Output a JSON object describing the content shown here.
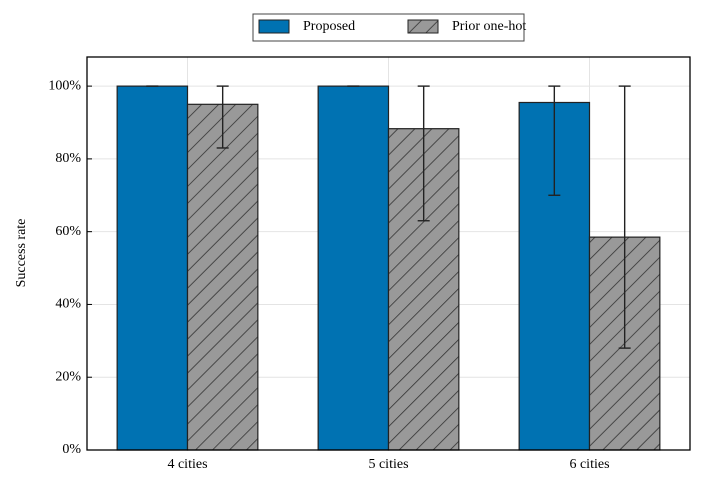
{
  "chart_data": {
    "type": "bar",
    "y_label": "Success rate",
    "categories": [
      "4 cities",
      "5 cities",
      "6 cities"
    ],
    "series": [
      {
        "name": "Proposed",
        "color": "#0072b2",
        "hatch": false,
        "values": [
          100,
          100,
          95.5
        ],
        "error_minus": [
          0,
          0,
          25.5
        ],
        "error_plus": [
          0,
          0,
          4.5
        ]
      },
      {
        "name": "Prior one-hot",
        "color": "#999999",
        "hatch": true,
        "values": [
          95,
          88.3,
          58.5
        ],
        "error_minus": [
          12,
          25.3,
          30.5
        ],
        "error_plus": [
          5,
          11.7,
          41.5
        ]
      }
    ],
    "ylim": [
      0,
      108
    ],
    "yticks": [
      {
        "value": 0,
        "label": "0%"
      },
      {
        "value": 20,
        "label": "20%"
      },
      {
        "value": 40,
        "label": "40%"
      },
      {
        "value": 60,
        "label": "60%"
      },
      {
        "value": 80,
        "label": "80%"
      },
      {
        "value": 100,
        "label": "100%"
      }
    ],
    "grid": true,
    "legend": "top"
  }
}
